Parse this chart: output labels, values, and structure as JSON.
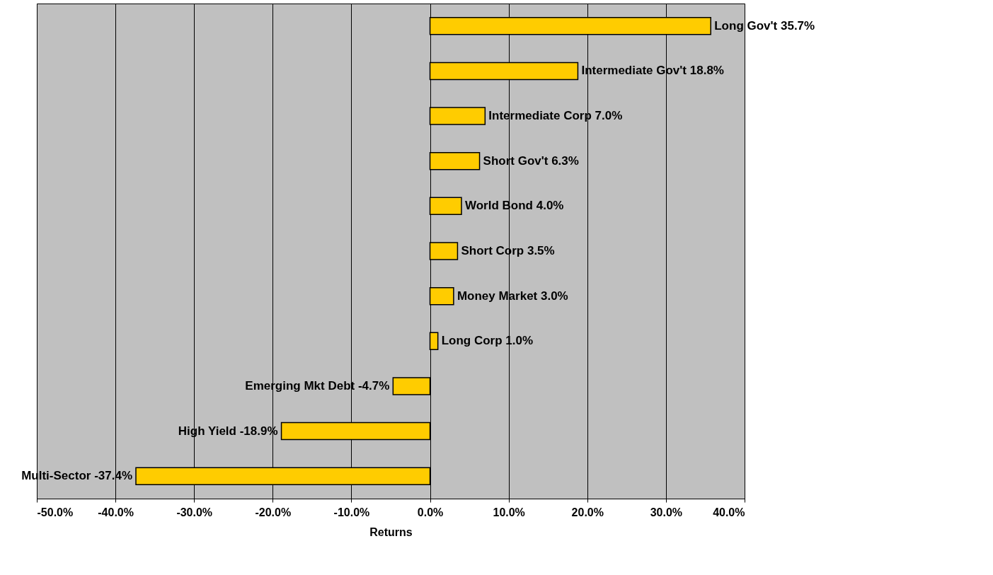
{
  "chart_data": {
    "type": "bar",
    "orientation": "horizontal",
    "xlabel": "Returns",
    "categories": [
      "Long Gov't",
      "Intermediate Gov't",
      "Intermediate Corp",
      "Short Gov't",
      "World Bond",
      "Short Corp",
      "Money Market",
      "Long Corp",
      "Emerging Mkt Debt",
      "High Yield",
      "Multi-Sector"
    ],
    "values": [
      35.7,
      18.8,
      7.0,
      6.3,
      4.0,
      3.5,
      3.0,
      1.0,
      -4.7,
      -18.9,
      -37.4
    ],
    "value_labels": [
      "35.7%",
      "18.8%",
      "7.0%",
      "6.3%",
      "4.0%",
      "3.5%",
      "3.0%",
      "1.0%",
      "-4.7%",
      "-18.9%",
      "-37.4%"
    ],
    "color": "#ffcc00",
    "xlim": [
      -50,
      40
    ],
    "xticks": [
      {
        "value": -50,
        "label": "-50.0%"
      },
      {
        "value": -40,
        "label": "-40.0%"
      },
      {
        "value": -30,
        "label": "-30.0%"
      },
      {
        "value": -20,
        "label": "-20.0%"
      },
      {
        "value": -10,
        "label": "-10.0%"
      },
      {
        "value": 0,
        "label": "0.0%"
      },
      {
        "value": 10,
        "label": "10.0%"
      },
      {
        "value": 20,
        "label": "20.0%"
      },
      {
        "value": 30,
        "label": "30.0%"
      },
      {
        "value": 40,
        "label": "40.0%"
      }
    ],
    "grid": "x",
    "tick_labels": "x"
  }
}
